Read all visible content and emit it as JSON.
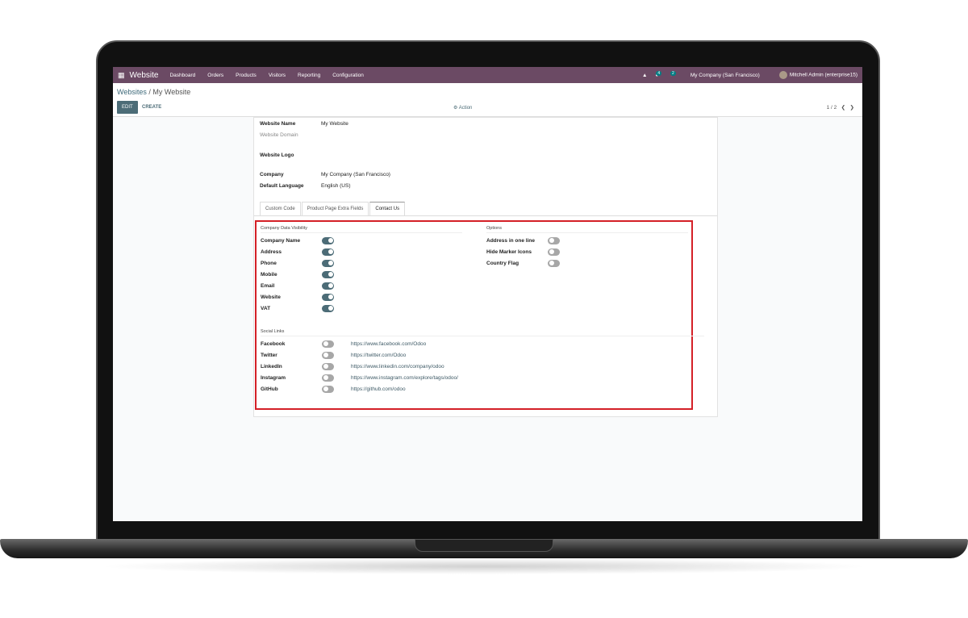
{
  "nav": {
    "app": "Website",
    "menu": [
      "Dashboard",
      "Orders",
      "Products",
      "Visitors",
      "Reporting",
      "Configuration"
    ],
    "messages_count": "4",
    "activities_count": "2",
    "company": "My Company (San Francisco)",
    "user": "Mitchell Admin (enterprise15)"
  },
  "breadcrumb": {
    "parent": "Websites",
    "current": "My Website"
  },
  "toolbar": {
    "edit": "EDIT",
    "create": "CREATE",
    "action": "⚙ Action",
    "pager": "1 / 2"
  },
  "form": {
    "website_name_label": "Website Name",
    "website_name": "My Website",
    "website_domain_label": "Website Domain",
    "website_logo_label": "Website Logo",
    "company_label": "Company",
    "company": "My Company (San Francisco)",
    "language_label": "Default Language",
    "language": "English (US)"
  },
  "tabs": [
    "Custom Code",
    "Product Page Extra Fields",
    "Contact Us"
  ],
  "active_tab": "Contact Us",
  "visibility": {
    "title": "Company Data Visibility",
    "items": [
      {
        "label": "Company Name",
        "on": true
      },
      {
        "label": "Address",
        "on": true
      },
      {
        "label": "Phone",
        "on": true
      },
      {
        "label": "Mobile",
        "on": true
      },
      {
        "label": "Email",
        "on": true
      },
      {
        "label": "Website",
        "on": true
      },
      {
        "label": "VAT",
        "on": true
      }
    ]
  },
  "options": {
    "title": "Options",
    "items": [
      {
        "label": "Address in one line",
        "on": false
      },
      {
        "label": "Hide Marker Icons",
        "on": false
      },
      {
        "label": "Country Flag",
        "on": false
      }
    ]
  },
  "social": {
    "title": "Social Links",
    "items": [
      {
        "label": "Facebook",
        "on": false,
        "url": "https://www.facebook.com/Odoo"
      },
      {
        "label": "Twitter",
        "on": false,
        "url": "https://twitter.com/Odoo"
      },
      {
        "label": "LinkedIn",
        "on": false,
        "url": "https://www.linkedin.com/company/odoo"
      },
      {
        "label": "Instagram",
        "on": false,
        "url": "https://www.instagram.com/explore/tags/odoo/"
      },
      {
        "label": "GitHub",
        "on": false,
        "url": "https://github.com/odoo"
      }
    ]
  },
  "colors": {
    "navbar": "#6b4a64",
    "primary": "#4c6c77",
    "highlight": "#d42027"
  }
}
